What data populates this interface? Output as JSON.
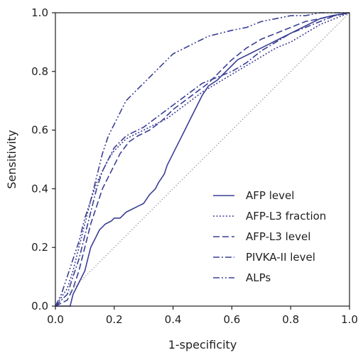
{
  "chart_data": {
    "type": "line",
    "title": "",
    "xlabel": "1-specificity",
    "ylabel": "Sensitivity",
    "xlim": [
      0,
      1
    ],
    "ylim": [
      0,
      1
    ],
    "xticks": [
      "0.0",
      "0.2",
      "0.4",
      "0.6",
      "0.8",
      "1.0"
    ],
    "yticks": [
      "0.0",
      "0.2",
      "0.4",
      "0.6",
      "0.8",
      "1.0"
    ],
    "grid": false,
    "legend_position": "bottom-right",
    "line_color": "#3a3f94",
    "reference_line": {
      "x": [
        0,
        1
      ],
      "y": [
        0,
        1
      ],
      "color": "#9a9a9a",
      "style": "dotted"
    },
    "series": [
      {
        "name": "AFP level",
        "style": "solid",
        "x": [
          0,
          0.05,
          0.06,
          0.08,
          0.1,
          0.11,
          0.12,
          0.14,
          0.15,
          0.17,
          0.19,
          0.2,
          0.22,
          0.24,
          0.26,
          0.28,
          0.3,
          0.32,
          0.34,
          0.35,
          0.37,
          0.38,
          0.4,
          0.42,
          0.44,
          0.46,
          0.48,
          0.5,
          0.52,
          0.55,
          0.58,
          0.6,
          0.62,
          0.66,
          0.7,
          0.74,
          0.78,
          0.82,
          0.86,
          0.9,
          0.94,
          1.0
        ],
        "y": [
          0,
          0,
          0.04,
          0.08,
          0.12,
          0.16,
          0.2,
          0.24,
          0.26,
          0.28,
          0.29,
          0.3,
          0.3,
          0.32,
          0.33,
          0.34,
          0.35,
          0.38,
          0.4,
          0.42,
          0.45,
          0.48,
          0.52,
          0.56,
          0.6,
          0.64,
          0.68,
          0.72,
          0.75,
          0.77,
          0.8,
          0.82,
          0.84,
          0.86,
          0.88,
          0.9,
          0.92,
          0.94,
          0.96,
          0.98,
          0.99,
          1.0
        ]
      },
      {
        "name": "AFP-L3 fraction",
        "style": "dotted",
        "x": [
          0,
          0.04,
          0.06,
          0.08,
          0.1,
          0.12,
          0.14,
          0.16,
          0.18,
          0.2,
          0.22,
          0.24,
          0.26,
          0.28,
          0.3,
          0.34,
          0.38,
          0.42,
          0.46,
          0.5,
          0.55,
          0.6,
          0.65,
          0.7,
          0.75,
          0.8,
          0.85,
          0.9,
          0.95,
          1.0
        ],
        "y": [
          0,
          0.06,
          0.12,
          0.2,
          0.28,
          0.36,
          0.42,
          0.46,
          0.5,
          0.53,
          0.55,
          0.57,
          0.58,
          0.59,
          0.6,
          0.62,
          0.64,
          0.67,
          0.7,
          0.73,
          0.76,
          0.79,
          0.82,
          0.85,
          0.88,
          0.9,
          0.93,
          0.96,
          0.98,
          1.0
        ]
      },
      {
        "name": "AFP-L3 level",
        "style": "dashed",
        "x": [
          0,
          0.04,
          0.06,
          0.08,
          0.1,
          0.12,
          0.14,
          0.16,
          0.18,
          0.2,
          0.22,
          0.25,
          0.28,
          0.32,
          0.36,
          0.4,
          0.44,
          0.48,
          0.52,
          0.56,
          0.6,
          0.65,
          0.7,
          0.75,
          0.8,
          0.85,
          0.9,
          0.95,
          1.0
        ],
        "y": [
          0,
          0.02,
          0.06,
          0.12,
          0.2,
          0.28,
          0.34,
          0.4,
          0.44,
          0.48,
          0.52,
          0.56,
          0.58,
          0.6,
          0.63,
          0.67,
          0.7,
          0.73,
          0.76,
          0.8,
          0.84,
          0.88,
          0.91,
          0.93,
          0.95,
          0.97,
          0.98,
          0.99,
          1.0
        ]
      },
      {
        "name": "PIVKA-II level",
        "style": "dashdot",
        "x": [
          0,
          0.04,
          0.06,
          0.08,
          0.1,
          0.12,
          0.14,
          0.16,
          0.18,
          0.2,
          0.22,
          0.24,
          0.26,
          0.28,
          0.3,
          0.34,
          0.38,
          0.42,
          0.46,
          0.5,
          0.55,
          0.6,
          0.65,
          0.7,
          0.75,
          0.8,
          0.85,
          0.9,
          0.95,
          1.0
        ],
        "y": [
          0,
          0.04,
          0.1,
          0.16,
          0.24,
          0.32,
          0.4,
          0.46,
          0.5,
          0.54,
          0.56,
          0.58,
          0.59,
          0.6,
          0.61,
          0.64,
          0.67,
          0.7,
          0.73,
          0.76,
          0.78,
          0.8,
          0.83,
          0.87,
          0.9,
          0.93,
          0.95,
          0.97,
          0.99,
          1.0
        ]
      },
      {
        "name": "ALPs",
        "style": "dashdotdot",
        "x": [
          0,
          0.02,
          0.04,
          0.06,
          0.08,
          0.1,
          0.12,
          0.14,
          0.16,
          0.18,
          0.2,
          0.22,
          0.24,
          0.26,
          0.28,
          0.3,
          0.32,
          0.34,
          0.36,
          0.38,
          0.4,
          0.44,
          0.48,
          0.52,
          0.56,
          0.6,
          0.65,
          0.7,
          0.75,
          0.8,
          0.85,
          0.9,
          1.0
        ],
        "y": [
          0,
          0.04,
          0.1,
          0.16,
          0.22,
          0.3,
          0.36,
          0.44,
          0.52,
          0.58,
          0.62,
          0.66,
          0.7,
          0.72,
          0.74,
          0.76,
          0.78,
          0.8,
          0.82,
          0.84,
          0.86,
          0.88,
          0.9,
          0.92,
          0.93,
          0.94,
          0.95,
          0.97,
          0.98,
          0.99,
          0.99,
          1.0,
          1.0
        ]
      }
    ]
  }
}
